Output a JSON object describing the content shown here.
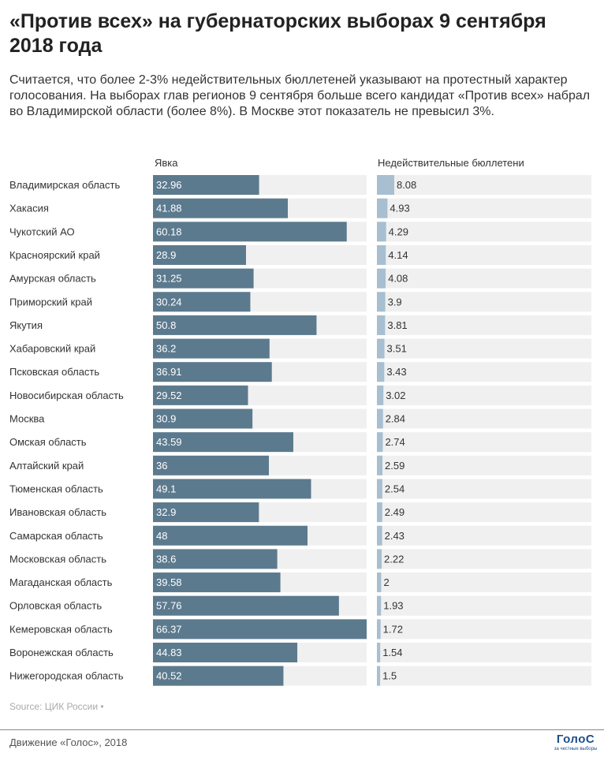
{
  "header": {
    "title": "«Против всех» на губернаторских выборах 9 сентября 2018 года",
    "subtitle": "Считается, что более 2-3% недействительных бюллетеней указывают на протестный характер голосования. На выборах глав регионов 9 сентября больше всего кандидат «Против всех» набрал во Владимирской области (более 8%). В Москве этот показатель не превысил 3%."
  },
  "footer": {
    "source": "Source: ЦИК России •",
    "credit": "Движение «Голос», 2018",
    "logo": "ГолоС",
    "logo_sub": "за честные выборы"
  },
  "colors": {
    "turnout_bar": "#5c7a8e",
    "invalid_bar": "#a7bfd0",
    "track": "#f0f0f0"
  },
  "chart_data": {
    "type": "bar",
    "orientation": "horizontal",
    "categories": [
      "Владимирская область",
      "Хакасия",
      "Чукотский АО",
      "Красноярский край",
      "Амурская область",
      "Приморский край",
      "Якутия",
      "Хабаровский край",
      "Псковская область",
      "Новосибирская область",
      "Москва",
      "Омская область",
      "Алтайский край",
      "Тюменская область",
      "Ивановская область",
      "Самарская область",
      "Московская область",
      "Магаданская область",
      "Орловская область",
      "Кемеровская область",
      "Воронежская область",
      "Нижегородская область"
    ],
    "series": [
      {
        "name": "Явка",
        "values": [
          32.96,
          41.88,
          60.18,
          28.9,
          31.25,
          30.24,
          50.8,
          36.2,
          36.91,
          29.52,
          30.9,
          43.59,
          36,
          49.1,
          32.9,
          48,
          38.6,
          39.58,
          57.76,
          66.37,
          44.83,
          40.52
        ],
        "labels": [
          "32.96",
          "41.88",
          "60.18",
          "28.9",
          "31.25",
          "30.24",
          "50.8",
          "36.2",
          "36.91",
          "29.52",
          "30.9",
          "43.59",
          "36",
          "49.1",
          "32.9",
          "48",
          "38.6",
          "39.58",
          "57.76",
          "66.37",
          "44.83",
          "40.52"
        ],
        "xlim": [
          0,
          66.37
        ]
      },
      {
        "name": "Недействительные бюллетени",
        "values": [
          8.08,
          4.93,
          4.29,
          4.14,
          4.08,
          3.9,
          3.81,
          3.51,
          3.43,
          3.02,
          2.84,
          2.74,
          2.59,
          2.54,
          2.49,
          2.43,
          2.22,
          2,
          1.93,
          1.72,
          1.54,
          1.5
        ],
        "labels": [
          "8.08",
          "4.93",
          "4.29",
          "4.14",
          "4.08",
          "3.9",
          "3.81",
          "3.51",
          "3.43",
          "3.02",
          "2.84",
          "2.74",
          "2.59",
          "2.54",
          "2.49",
          "2.43",
          "2.22",
          "2",
          "1.93",
          "1.72",
          "1.54",
          "1.5"
        ],
        "xlim": [
          0,
          100
        ]
      }
    ],
    "grid": false,
    "legend": "none"
  }
}
